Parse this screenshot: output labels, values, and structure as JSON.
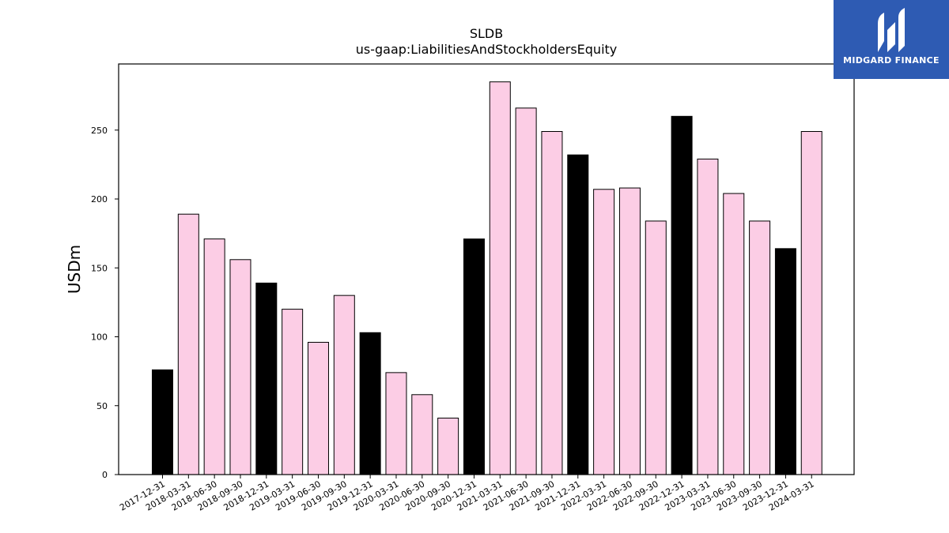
{
  "chart_data": {
    "type": "bar",
    "title": "SLDB",
    "subtitle": "us-gaap:LiabilitiesAndStockholdersEquity",
    "xlabel": "",
    "ylabel": "USDm",
    "ylim": [
      0,
      298
    ],
    "yticks": [
      0,
      50,
      100,
      150,
      200,
      250
    ],
    "colors": {
      "year_end": "#000000",
      "quarter": "#fccde5",
      "edge": "#000000"
    },
    "categories": [
      "2017-12-31",
      "2018-03-31",
      "2018-06-30",
      "2018-09-30",
      "2018-12-31",
      "2019-03-31",
      "2019-06-30",
      "2019-09-30",
      "2019-12-31",
      "2020-03-31",
      "2020-06-30",
      "2020-09-30",
      "2020-12-31",
      "2021-03-31",
      "2021-06-30",
      "2021-09-30",
      "2021-12-31",
      "2022-03-31",
      "2022-06-30",
      "2022-09-30",
      "2022-12-31",
      "2023-03-31",
      "2023-06-30",
      "2023-09-30",
      "2023-12-31",
      "2024-03-31"
    ],
    "values": [
      76,
      189,
      171,
      156,
      139,
      120,
      96,
      130,
      103,
      74,
      58,
      41,
      171,
      285,
      266,
      249,
      232,
      207,
      208,
      184,
      260,
      229,
      204,
      184,
      164,
      249
    ]
  },
  "logo": {
    "text": "MIDGARD FINANCE",
    "icon": "midgard-logo-icon"
  }
}
